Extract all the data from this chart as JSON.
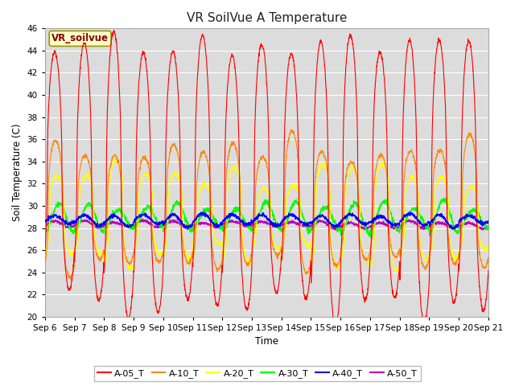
{
  "title": "VR SoilVue A Temperature",
  "xlabel": "Time",
  "ylabel": "Soil Temperature (C)",
  "ylim": [
    20,
    46
  ],
  "yticks": [
    20,
    22,
    24,
    26,
    28,
    30,
    32,
    34,
    36,
    38,
    40,
    42,
    44,
    46
  ],
  "n_days": 15,
  "annotation_text": "VR_soilvue",
  "series_colors": {
    "A-05_T": "#ff0000",
    "A-10_T": "#ff8800",
    "A-20_T": "#ffff00",
    "A-30_T": "#00ff00",
    "A-40_T": "#0000ff",
    "A-50_T": "#bb00bb"
  },
  "series_names": [
    "A-05_T",
    "A-10_T",
    "A-20_T",
    "A-30_T",
    "A-40_T",
    "A-50_T"
  ],
  "fig_bg_color": "#ffffff",
  "plot_bg_color": "#dcdcdc",
  "grid_color": "#ffffff",
  "days": [
    "Sep 6",
    "Sep 7",
    "Sep 8",
    "Sep 9",
    "Sep 10",
    "Sep 11",
    "Sep 12",
    "Sep 13",
    "Sep 14",
    "Sep 15",
    "Sep 16",
    "Sep 17",
    "Sep 18",
    "Sep 19",
    "Sep 20",
    "Sep 21"
  ]
}
